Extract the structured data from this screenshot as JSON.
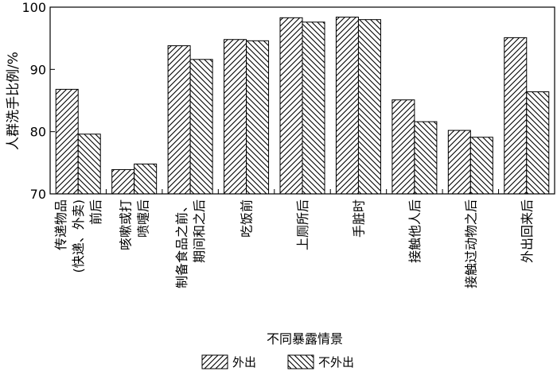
{
  "chart_data": {
    "type": "bar",
    "title": "",
    "xlabel": "不同暴露情景",
    "ylabel": "人群洗手比例/%",
    "ylim": [
      70,
      100
    ],
    "yticks": [
      70,
      80,
      90,
      100
    ],
    "grid": false,
    "legend_position": "bottom",
    "categories": [
      [
        "传递物品",
        "(快递、外卖)",
        "前后"
      ],
      [
        "咳嗽或打",
        "喷嚏后"
      ],
      [
        "制备食品之前、",
        "期间和之后"
      ],
      [
        "吃饭前"
      ],
      [
        "上厕所后"
      ],
      [
        "手脏时"
      ],
      [
        "接触他人后"
      ],
      [
        "接触过动物之后"
      ],
      [
        "外出回来后"
      ]
    ],
    "series": [
      {
        "name": "外出",
        "hatch": "forward-diagonal",
        "values": [
          86.8,
          73.9,
          93.8,
          94.8,
          98.3,
          98.4,
          85.1,
          80.2,
          95.1
        ]
      },
      {
        "name": "不外出",
        "hatch": "back-diagonal",
        "values": [
          79.6,
          74.8,
          91.6,
          94.6,
          97.6,
          98.0,
          81.6,
          79.1,
          86.4
        ]
      }
    ]
  }
}
